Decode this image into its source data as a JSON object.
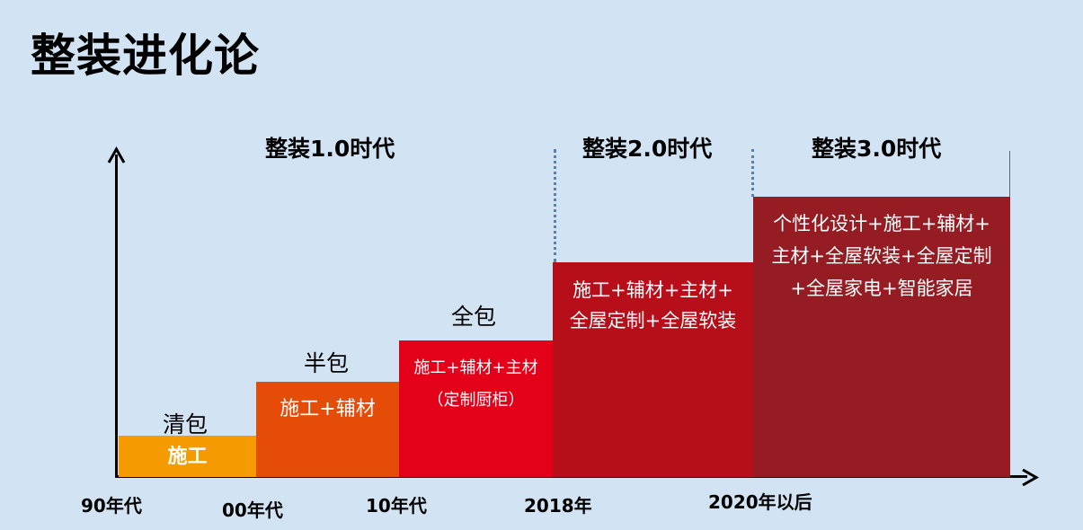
{
  "title": "整装进化论",
  "eras": [
    "整装1.0时代",
    "整装2.0时代",
    "整装3.0时代"
  ],
  "x_labels": [
    "90年代",
    "00年代",
    "10年代",
    "2018年",
    "2020年以后"
  ],
  "levels": [
    {
      "name": "清包",
      "lines": [
        "施工"
      ],
      "color": "#f59a00",
      "step": 1
    },
    {
      "name": "半包",
      "lines": [
        "施工+辅材"
      ],
      "color": "#e44c08",
      "step": 2
    },
    {
      "name": "全包",
      "lines": [
        "施工+辅材+主材",
        "（定制厨柜）"
      ],
      "color": "#e5001a",
      "step": 3
    },
    {
      "name": "",
      "lines": [
        "施工+辅材+主材+",
        "全屋定制+全屋软装"
      ],
      "color": "#b70f1a",
      "step": 4
    },
    {
      "name": "",
      "lines": [
        "个性化设计+施工+辅材+",
        "主材+全屋软装+全屋定制",
        "+全屋家电+智能家居"
      ],
      "color": "#941c22",
      "step": 5
    }
  ]
}
